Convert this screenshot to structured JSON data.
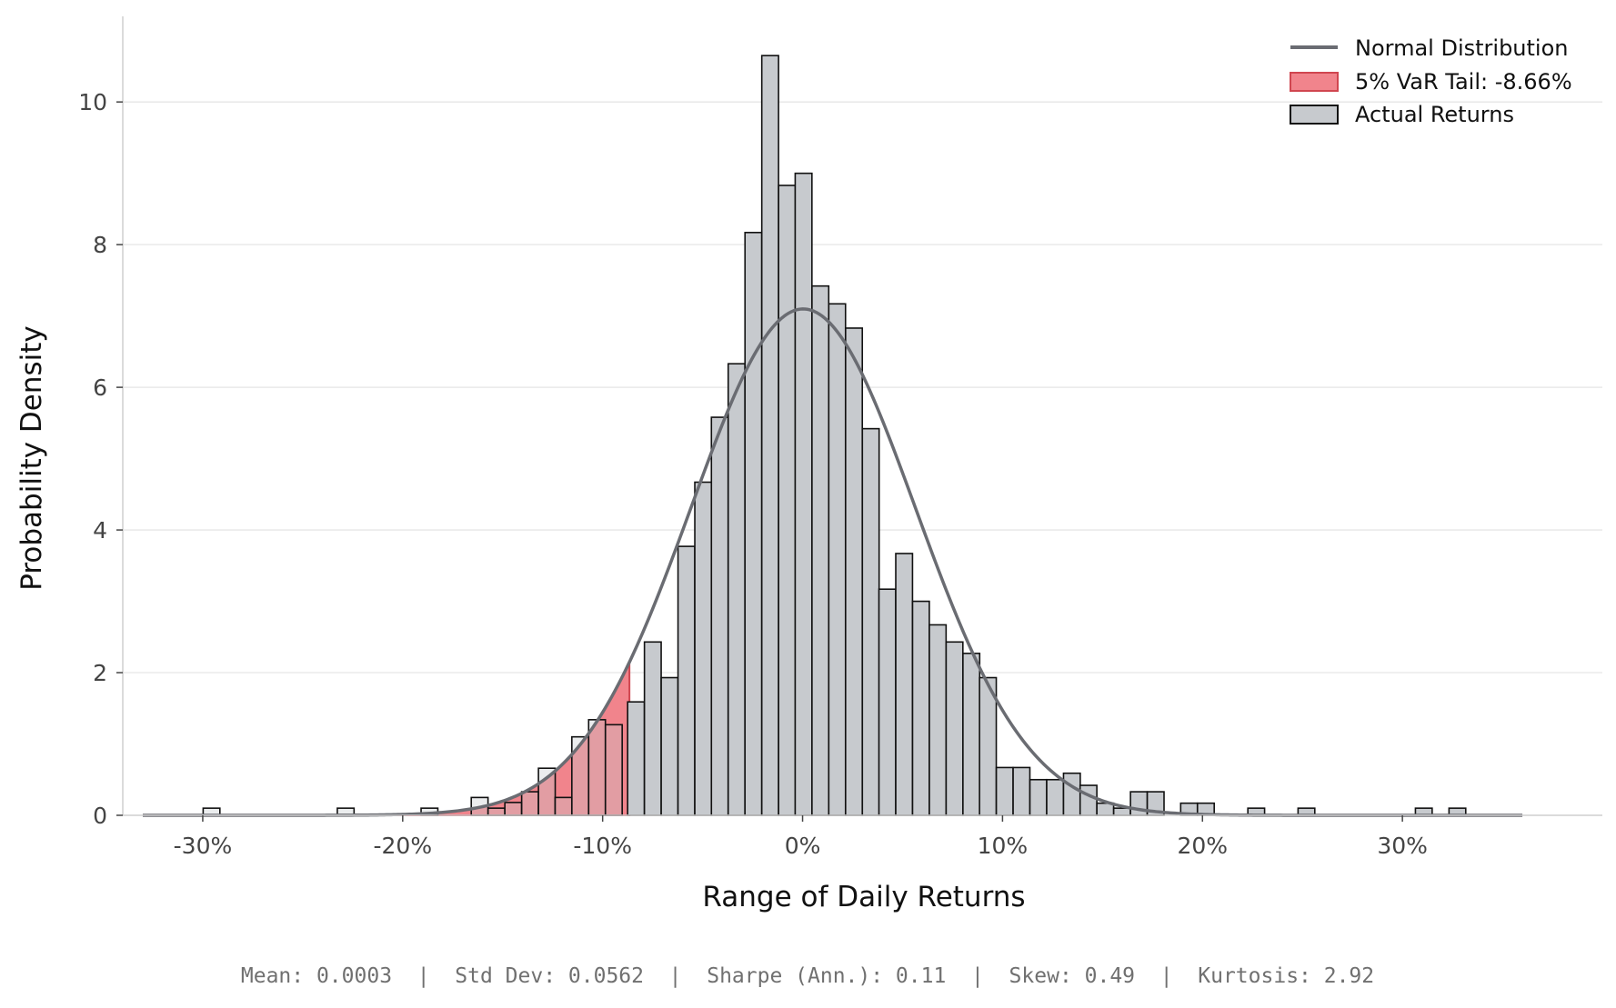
{
  "chart_data": {
    "type": "bar",
    "subtype": "histogram",
    "xlabel": "Range of Daily Returns",
    "ylabel": "Probability Density",
    "xlim": [
      -0.34,
      0.4
    ],
    "ylim": [
      0,
      11.2
    ],
    "x_ticks": [
      {
        "value": -0.3,
        "label": "-30%"
      },
      {
        "value": -0.2,
        "label": "-20%"
      },
      {
        "value": -0.1,
        "label": "-10%"
      },
      {
        "value": 0.0,
        "label": "0%"
      },
      {
        "value": 0.1,
        "label": "10%"
      },
      {
        "value": 0.2,
        "label": "20%"
      },
      {
        "value": 0.3,
        "label": "30%"
      }
    ],
    "y_ticks": [
      {
        "value": 0,
        "label": "0"
      },
      {
        "value": 2,
        "label": "2"
      },
      {
        "value": 4,
        "label": "4"
      },
      {
        "value": 6,
        "label": "6"
      },
      {
        "value": 8,
        "label": "8"
      },
      {
        "value": 10,
        "label": "10"
      }
    ],
    "grid": "horizontal",
    "legend_position": "top-right",
    "legend": [
      {
        "key": "normal",
        "label": "Normal Distribution"
      },
      {
        "key": "var",
        "label": "5% VaR Tail: -8.66%"
      },
      {
        "key": "hist",
        "label": "Actual Returns"
      }
    ],
    "histogram": {
      "name": "Actual Returns",
      "bin_width": 0.00838,
      "bins": [
        {
          "x0": -0.2998,
          "value": 0.1
        },
        {
          "x0": -0.2327,
          "value": 0.1
        },
        {
          "x0": -0.1908,
          "value": 0.1
        },
        {
          "x0": -0.1657,
          "value": 0.25
        },
        {
          "x0": -0.1573,
          "value": 0.1
        },
        {
          "x0": -0.1489,
          "value": 0.18
        },
        {
          "x0": -0.1405,
          "value": 0.33
        },
        {
          "x0": -0.1321,
          "value": 0.66
        },
        {
          "x0": -0.1238,
          "value": 0.25
        },
        {
          "x0": -0.1154,
          "value": 1.1
        },
        {
          "x0": -0.107,
          "value": 1.34
        },
        {
          "x0": -0.0986,
          "value": 1.27
        },
        {
          "x0": -0.0875,
          "value": 1.59
        },
        {
          "x0": -0.0791,
          "value": 2.43
        },
        {
          "x0": -0.0707,
          "value": 1.93
        },
        {
          "x0": -0.0623,
          "value": 3.77
        },
        {
          "x0": -0.0539,
          "value": 4.67
        },
        {
          "x0": -0.0456,
          "value": 5.58
        },
        {
          "x0": -0.0372,
          "value": 6.33
        },
        {
          "x0": -0.0288,
          "value": 8.17
        },
        {
          "x0": -0.0204,
          "value": 10.65
        },
        {
          "x0": -0.012,
          "value": 8.83
        },
        {
          "x0": -0.0037,
          "value": 9.0
        },
        {
          "x0": 0.0047,
          "value": 7.42
        },
        {
          "x0": 0.0131,
          "value": 7.17
        },
        {
          "x0": 0.0215,
          "value": 6.83
        },
        {
          "x0": 0.0299,
          "value": 5.42
        },
        {
          "x0": 0.0382,
          "value": 3.17
        },
        {
          "x0": 0.0466,
          "value": 3.67
        },
        {
          "x0": 0.055,
          "value": 3.0
        },
        {
          "x0": 0.0634,
          "value": 2.67
        },
        {
          "x0": 0.0718,
          "value": 2.43
        },
        {
          "x0": 0.0802,
          "value": 2.27
        },
        {
          "x0": 0.0885,
          "value": 1.93
        },
        {
          "x0": 0.0969,
          "value": 0.67
        },
        {
          "x0": 0.1053,
          "value": 0.67
        },
        {
          "x0": 0.1137,
          "value": 0.5
        },
        {
          "x0": 0.1221,
          "value": 0.5
        },
        {
          "x0": 0.1305,
          "value": 0.59
        },
        {
          "x0": 0.1388,
          "value": 0.42
        },
        {
          "x0": 0.1472,
          "value": 0.17
        },
        {
          "x0": 0.1556,
          "value": 0.1
        },
        {
          "x0": 0.164,
          "value": 0.33
        },
        {
          "x0": 0.1724,
          "value": 0.33
        },
        {
          "x0": 0.1891,
          "value": 0.17
        },
        {
          "x0": 0.1975,
          "value": 0.17
        },
        {
          "x0": 0.2227,
          "value": 0.1
        },
        {
          "x0": 0.2478,
          "value": 0.1
        },
        {
          "x0": 0.3065,
          "value": 0.1
        },
        {
          "x0": 0.3233,
          "value": 0.1
        }
      ]
    },
    "normal_distribution": {
      "name": "Normal Distribution",
      "mean": 0.0003,
      "std": 0.0562,
      "x_range": [
        -0.33,
        0.36
      ]
    },
    "var_tail": {
      "name": "5% VaR Tail: -8.66%",
      "threshold": -0.0866
    },
    "stats_text": "Mean: 0.0003  |  Std Dev: 0.0562  |  Sharpe (Ann.): 0.11  |  Skew: 0.49  |  Kurtosis: 2.92"
  },
  "colors": {
    "background": "#ffffff",
    "histogram_fill": "#c7cace",
    "histogram_edge": "#111111",
    "normal_line": "#6a6c72",
    "var_fill": "#ee6e78",
    "var_edge": "#d04650",
    "grid": "#e6e6e6",
    "axis": "#cfcfcf",
    "tick_text": "#444444",
    "stats_text": "#707070"
  }
}
